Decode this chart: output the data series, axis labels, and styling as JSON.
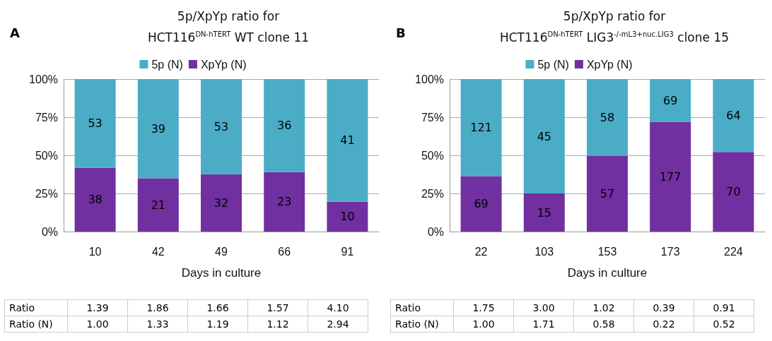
{
  "chart_data": [
    {
      "type": "bar",
      "title": "5p/XpYp ratio for\nHCT116$^{DN-hTERT}$ WT clone 11",
      "xlabel": "Days in culture",
      "categories": [
        "10",
        "42",
        "49",
        "66",
        "91"
      ],
      "stacked": true,
      "series": [
        {
          "name": "XpYp (N)",
          "color": "#7030a0",
          "values": [
            41.8,
            35.0,
            37.6,
            39.0,
            19.6
          ]
        },
        {
          "name": "5p (N)",
          "color": "#4bacc6",
          "values": [
            58.2,
            65.0,
            62.4,
            61.0,
            80.4
          ]
        }
      ],
      "ylim": [
        0,
        100
      ],
      "yticks": [
        {
          "value": 0,
          "label": "0%"
        },
        {
          "value": 25,
          "label": "25%"
        },
        {
          "value": 50,
          "label": "50%"
        },
        {
          "value": 75,
          "label": "75%"
        },
        {
          "value": 100,
          "label": "100%"
        }
      ],
      "grid": "y",
      "legend": "top",
      "annotations": [
        "A",
        "Ratio",
        "1.39",
        "1.86",
        "1.66",
        "1.57",
        "4.10",
        "Ratio (N)",
        "1.00",
        "1.33",
        "1.19",
        "1.12",
        "2.94",
        "38",
        "21",
        "32",
        "23",
        "10",
        "53",
        "39",
        "53",
        "36",
        "41"
      ]
    },
    {
      "type": "bar",
      "title": "5p/XpYp ratio for\nHCT116$^{DN-hTERT}$ LIG3$^{-/-mL3+nuc.LIG3}$ clone 15",
      "xlabel": "Days in culture",
      "categories": [
        "22",
        "103",
        "153",
        "173",
        "224"
      ],
      "stacked": true,
      "series": [
        {
          "name": "XpYp (N)",
          "color": "#7030a0",
          "values": [
            36.3,
            25.0,
            49.6,
            72.0,
            52.2
          ]
        },
        {
          "name": "5p (N)",
          "color": "#4bacc6",
          "values": [
            63.7,
            75.0,
            50.4,
            28.0,
            47.8
          ]
        }
      ],
      "ylim": [
        0,
        100
      ],
      "yticks": [
        {
          "value": 0,
          "label": "0%"
        },
        {
          "value": 25,
          "label": "25%"
        },
        {
          "value": 50,
          "label": "50%"
        },
        {
          "value": 75,
          "label": "75%"
        },
        {
          "value": 100,
          "label": "100%"
        }
      ],
      "grid": "y",
      "legend": "top",
      "annotations": [
        "B",
        "Ratio",
        "1.75",
        "3.00",
        "1.02",
        "0.39",
        "0.91",
        "Ratio (N)",
        "1.00",
        "1.71",
        "0.58",
        "0.22",
        "0.52",
        "69",
        "15",
        "57",
        "177",
        "70",
        "121",
        "45",
        "58",
        "69",
        "64"
      ]
    }
  ]
}
